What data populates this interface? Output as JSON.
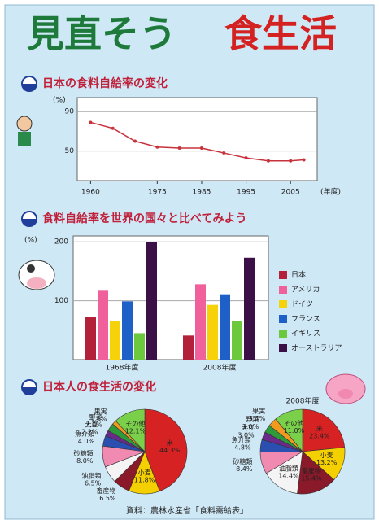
{
  "title_left": "見直そう",
  "title_right": "食生活",
  "chart_data": [
    {
      "type": "line",
      "title": "日本の食料自給率の変化",
      "y_label": "(%)",
      "x_label": "(年度)",
      "x": [
        1960,
        1965,
        1970,
        1975,
        1980,
        1985,
        1990,
        1995,
        2000,
        2005,
        2008
      ],
      "series": [
        {
          "name": "食料自給率",
          "color": "#c8323c",
          "values": [
            79,
            73,
            60,
            54,
            53,
            53,
            48,
            43,
            40,
            40,
            41
          ]
        }
      ],
      "xlim": [
        1957,
        2011
      ],
      "xticks": [
        1960,
        1975,
        1985,
        1995,
        2005
      ],
      "ylim": [
        20,
        100
      ],
      "yticks": [
        90,
        50
      ],
      "grid": true
    },
    {
      "type": "bar",
      "title": "食料自給率を世界の国々と比べてみよう",
      "y_label": "(%)",
      "categories": [
        "1968年度",
        "2008年度"
      ],
      "series": [
        {
          "name": "日本",
          "color": "#b3203a",
          "values": [
            73,
            41
          ]
        },
        {
          "name": "アメリカ",
          "color": "#f0609a",
          "values": [
            117,
            128
          ]
        },
        {
          "name": "ドイツ",
          "color": "#f5d20a",
          "values": [
            66,
            93
          ]
        },
        {
          "name": "フランス",
          "color": "#1f5fc8",
          "values": [
            99,
            111
          ]
        },
        {
          "name": "イギリス",
          "color": "#6cc83c",
          "values": [
            45,
            65
          ]
        },
        {
          "name": "オーストラリア",
          "color": "#3a1046",
          "values": [
            199,
            173
          ]
        }
      ],
      "ylim": [
        0,
        210
      ],
      "yticks": [
        100,
        200
      ],
      "grid": true
    },
    {
      "type": "pie",
      "title": "日本人の食生活の変化",
      "categories": [
        "米",
        "小麦",
        "畜産物",
        "油脂類",
        "砂糖類",
        "魚介類",
        "大豆",
        "野菜",
        "果実",
        "その他"
      ],
      "colors": [
        "#d62222",
        "#f5d000",
        "#8a1a2a",
        "#f4f4f4",
        "#f08ab0",
        "#2a4fb0",
        "#6a2a8a",
        "#2e9a3a",
        "#f09a20",
        "#7ad04a"
      ],
      "values": [
        44.3,
        11.8,
        6.5,
        6.5,
        8.0,
        4.0,
        2.2,
        3.0,
        1.6,
        12.1
      ],
      "value_labels": [
        "44.3%",
        "11.8%",
        "6.5%",
        "6.5%",
        "8.0%",
        "4.0%",
        "2.2%",
        "3.0%",
        "1.6%",
        "12.1%"
      ]
    },
    {
      "type": "pie",
      "year": "2008年度",
      "categories": [
        "米",
        "小麦",
        "畜産物",
        "油脂類",
        "砂糖類",
        "魚介類",
        "大豆",
        "野菜",
        "果実",
        "その他"
      ],
      "colors": [
        "#d62222",
        "#f5d000",
        "#8a1a2a",
        "#f4f4f4",
        "#f08ab0",
        "#2a4fb0",
        "#6a2a8a",
        "#2e9a3a",
        "#f09a20",
        "#7ad04a"
      ],
      "values": [
        23.4,
        13.2,
        15.4,
        14.4,
        8.4,
        4.8,
        3.0,
        3.0,
        3.4,
        11.0
      ],
      "value_labels": [
        "23.4%",
        "13.2%",
        "15.4%",
        "14.4%",
        "8.4%",
        "4.8%",
        "3.0%",
        "3.0%",
        "3.4%",
        "11.0%"
      ]
    }
  ],
  "source": "資料：農林水産省「食料需給表」"
}
